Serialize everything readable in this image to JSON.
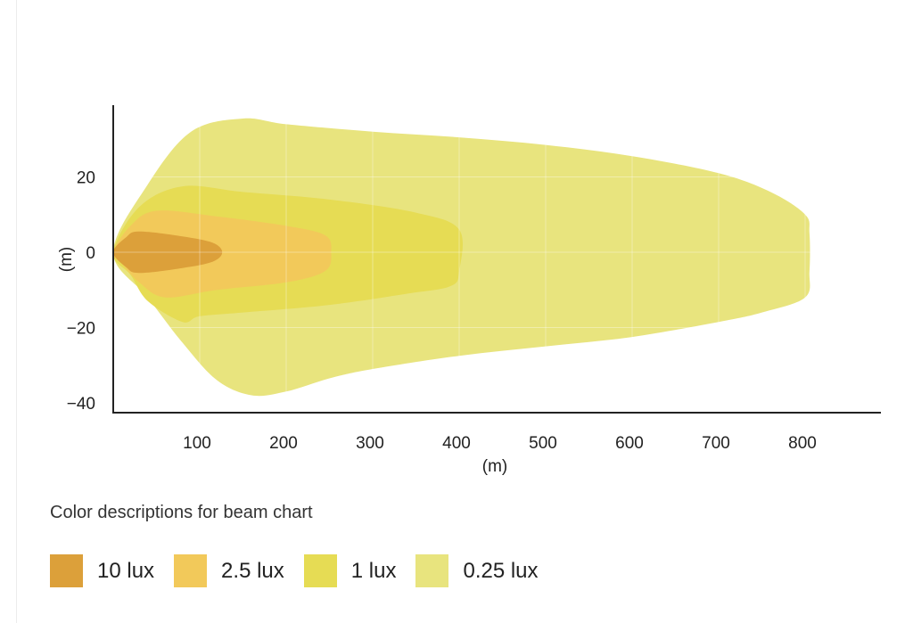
{
  "chart_data": {
    "type": "area",
    "title": "",
    "xlabel": "(m)",
    "ylabel": "(m)",
    "xlim": [
      0,
      880
    ],
    "ylim": [
      -42,
      38
    ],
    "x_ticks": [
      100,
      200,
      300,
      400,
      500,
      600,
      700,
      800
    ],
    "y_ticks": [
      20,
      0,
      -20,
      -40
    ],
    "grid": true,
    "legend_caption": "Color descriptions for beam chart",
    "series": [
      {
        "name": "0.25 lux",
        "color": "#e8e47e",
        "outline": [
          [
            0,
            0
          ],
          [
            40,
            18
          ],
          [
            90,
            32
          ],
          [
            150,
            35.5
          ],
          [
            200,
            34
          ],
          [
            300,
            32
          ],
          [
            400,
            30.5
          ],
          [
            500,
            28.5
          ],
          [
            600,
            25.5
          ],
          [
            700,
            21
          ],
          [
            760,
            16
          ],
          [
            800,
            10
          ],
          [
            805,
            5
          ],
          [
            805,
            -5
          ],
          [
            800,
            -12
          ],
          [
            750,
            -16
          ],
          [
            700,
            -18.5
          ],
          [
            600,
            -22.5
          ],
          [
            500,
            -25
          ],
          [
            400,
            -27.5
          ],
          [
            300,
            -31
          ],
          [
            250,
            -33.5
          ],
          [
            200,
            -37
          ],
          [
            160,
            -38
          ],
          [
            120,
            -34
          ],
          [
            80,
            -24
          ],
          [
            40,
            -12
          ]
        ]
      },
      {
        "name": "1 lux",
        "color": "#e6dc54",
        "outline": [
          [
            0,
            0
          ],
          [
            30,
            12
          ],
          [
            80,
            17.5
          ],
          [
            150,
            16
          ],
          [
            250,
            14
          ],
          [
            350,
            10.5
          ],
          [
            400,
            6
          ],
          [
            400,
            -5
          ],
          [
            390,
            -9
          ],
          [
            340,
            -11
          ],
          [
            250,
            -14
          ],
          [
            150,
            -16
          ],
          [
            100,
            -17
          ],
          [
            80,
            -18.5
          ],
          [
            40,
            -13
          ],
          [
            20,
            -6
          ]
        ]
      },
      {
        "name": "2.5 lux",
        "color": "#f2c95a",
        "outline": [
          [
            0,
            0
          ],
          [
            20,
            7
          ],
          [
            50,
            11
          ],
          [
            120,
            9.5
          ],
          [
            200,
            7
          ],
          [
            245,
            4.5
          ],
          [
            252,
            0
          ],
          [
            245,
            -5
          ],
          [
            200,
            -8
          ],
          [
            120,
            -10
          ],
          [
            60,
            -12
          ],
          [
            30,
            -8
          ],
          [
            10,
            -3
          ]
        ]
      },
      {
        "name": "10 lux",
        "color": "#dca03a",
        "outline": [
          [
            0,
            0
          ],
          [
            15,
            4
          ],
          [
            30,
            5.5
          ],
          [
            80,
            4.2
          ],
          [
            115,
            2.5
          ],
          [
            126,
            0
          ],
          [
            115,
            -2.5
          ],
          [
            80,
            -4.2
          ],
          [
            30,
            -5.5
          ],
          [
            15,
            -4
          ]
        ]
      }
    ]
  },
  "legend": [
    {
      "label": "10 lux",
      "color": "#dca03a"
    },
    {
      "label": "2.5 lux",
      "color": "#f2c95a"
    },
    {
      "label": "1 lux",
      "color": "#e6dc54"
    },
    {
      "label": "0.25 lux",
      "color": "#e8e47e"
    }
  ]
}
